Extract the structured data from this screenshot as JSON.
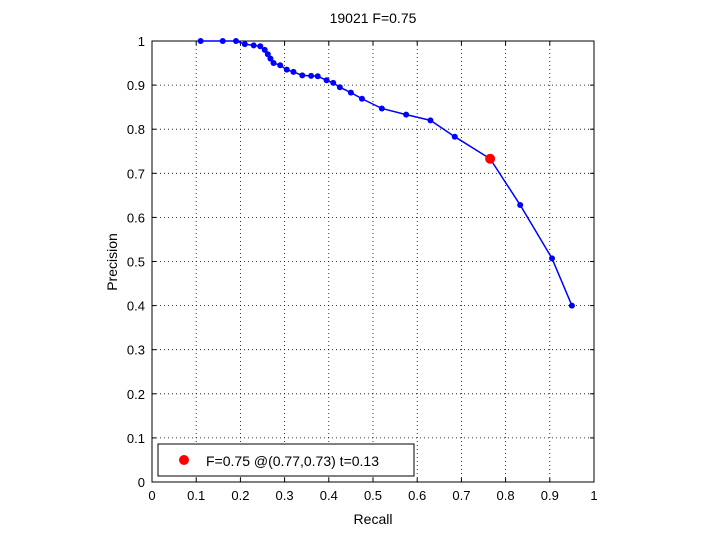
{
  "chart_data": {
    "type": "line",
    "title": "19021 F=0.75",
    "xlabel": "Recall",
    "ylabel": "Precision",
    "xlim": [
      0,
      1
    ],
    "ylim": [
      0,
      1
    ],
    "grid": true,
    "xticks": [
      0,
      0.1,
      0.2,
      0.3,
      0.4,
      0.5,
      0.6,
      0.7,
      0.8,
      0.9,
      1
    ],
    "yticks": [
      0,
      0.1,
      0.2,
      0.3,
      0.4,
      0.5,
      0.6,
      0.7,
      0.8,
      0.9,
      1
    ],
    "xtick_labels": [
      "0",
      "0.1",
      "0.2",
      "0.3",
      "0.4",
      "0.5",
      "0.6",
      "0.7",
      "0.8",
      "0.9",
      "1"
    ],
    "ytick_labels": [
      "0",
      "0.1",
      "0.2",
      "0.3",
      "0.4",
      "0.5",
      "0.6",
      "0.7",
      "0.8",
      "0.9",
      "1"
    ],
    "series": [
      {
        "color": "#0000ff",
        "marker": "dot",
        "x": [
          0.11,
          0.16,
          0.19,
          0.21,
          0.23,
          0.245,
          0.255,
          0.262,
          0.268,
          0.275,
          0.29,
          0.305,
          0.32,
          0.34,
          0.36,
          0.375,
          0.395,
          0.41,
          0.425,
          0.45,
          0.475,
          0.52,
          0.575,
          0.63,
          0.685,
          0.765,
          0.833,
          0.905,
          0.95
        ],
        "y": [
          1.0,
          1.0,
          1.0,
          0.993,
          0.99,
          0.988,
          0.98,
          0.97,
          0.96,
          0.95,
          0.945,
          0.935,
          0.93,
          0.922,
          0.921,
          0.92,
          0.911,
          0.905,
          0.895,
          0.883,
          0.869,
          0.847,
          0.833,
          0.82,
          0.783,
          0.733,
          0.628,
          0.507,
          0.4
        ]
      }
    ],
    "highlight": {
      "x": 0.765,
      "y": 0.733,
      "color": "#ff0000"
    },
    "legend": {
      "label": "F=0.75 @(0.77,0.73) t=0.13",
      "marker_color": "#ff0000",
      "placement": "bottom-left"
    }
  }
}
